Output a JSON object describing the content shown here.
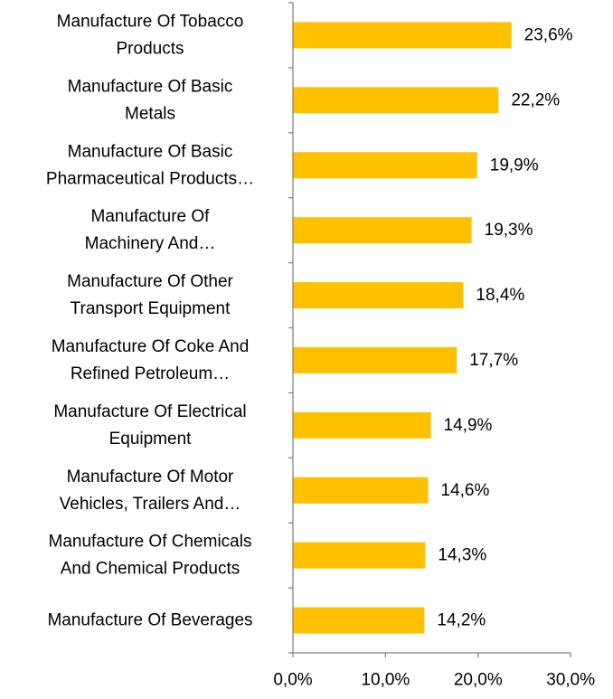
{
  "chart_data": {
    "type": "bar",
    "orientation": "horizontal",
    "title": "",
    "xlabel": "",
    "ylabel": "",
    "categories": [
      [
        "Manufacture Of Tobacco",
        "Products"
      ],
      [
        "Manufacture Of Basic",
        "Metals"
      ],
      [
        "Manufacture Of Basic",
        "Pharmaceutical Products…"
      ],
      [
        "Manufacture Of",
        "Machinery And…"
      ],
      [
        "Manufacture Of Other",
        "Transport Equipment"
      ],
      [
        "Manufacture Of Coke And",
        "Refined Petroleum…"
      ],
      [
        "Manufacture Of Electrical",
        "Equipment"
      ],
      [
        "Manufacture Of Motor",
        "Vehicles, Trailers And…"
      ],
      [
        "Manufacture Of Chemicals",
        "And Chemical Products"
      ],
      [
        "Manufacture Of Beverages"
      ]
    ],
    "values": [
      23.6,
      22.2,
      19.9,
      19.3,
      18.4,
      17.7,
      14.9,
      14.6,
      14.3,
      14.2
    ],
    "value_labels": [
      "23,6%",
      "22,2%",
      "19,9%",
      "19,3%",
      "18,4%",
      "17,7%",
      "14,9%",
      "14,6%",
      "14,3%",
      "14,2%"
    ],
    "xlim": [
      0,
      30
    ],
    "x_ticks": [
      0,
      10,
      20,
      30
    ],
    "x_tick_labels": [
      "0,0%",
      "10,0%",
      "20,0%",
      "30,0%"
    ],
    "grid": false,
    "legend": "none",
    "bar_color": "#FFC000",
    "axis_color": "#868686"
  }
}
